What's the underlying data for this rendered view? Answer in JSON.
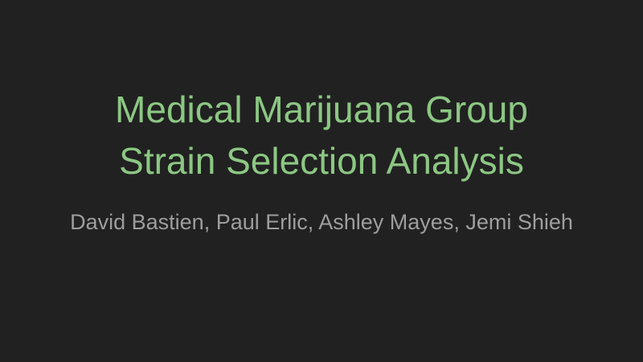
{
  "slide": {
    "title_line_1": "Medical Marijuana Group",
    "title_line_2": "Strain Selection Analysis",
    "subtitle": "David Bastien, Paul Erlic, Ashley Mayes, Jemi Shieh"
  },
  "colors": {
    "background": "#212121",
    "title": "#8cc783",
    "subtitle": "#9e9e9e"
  }
}
